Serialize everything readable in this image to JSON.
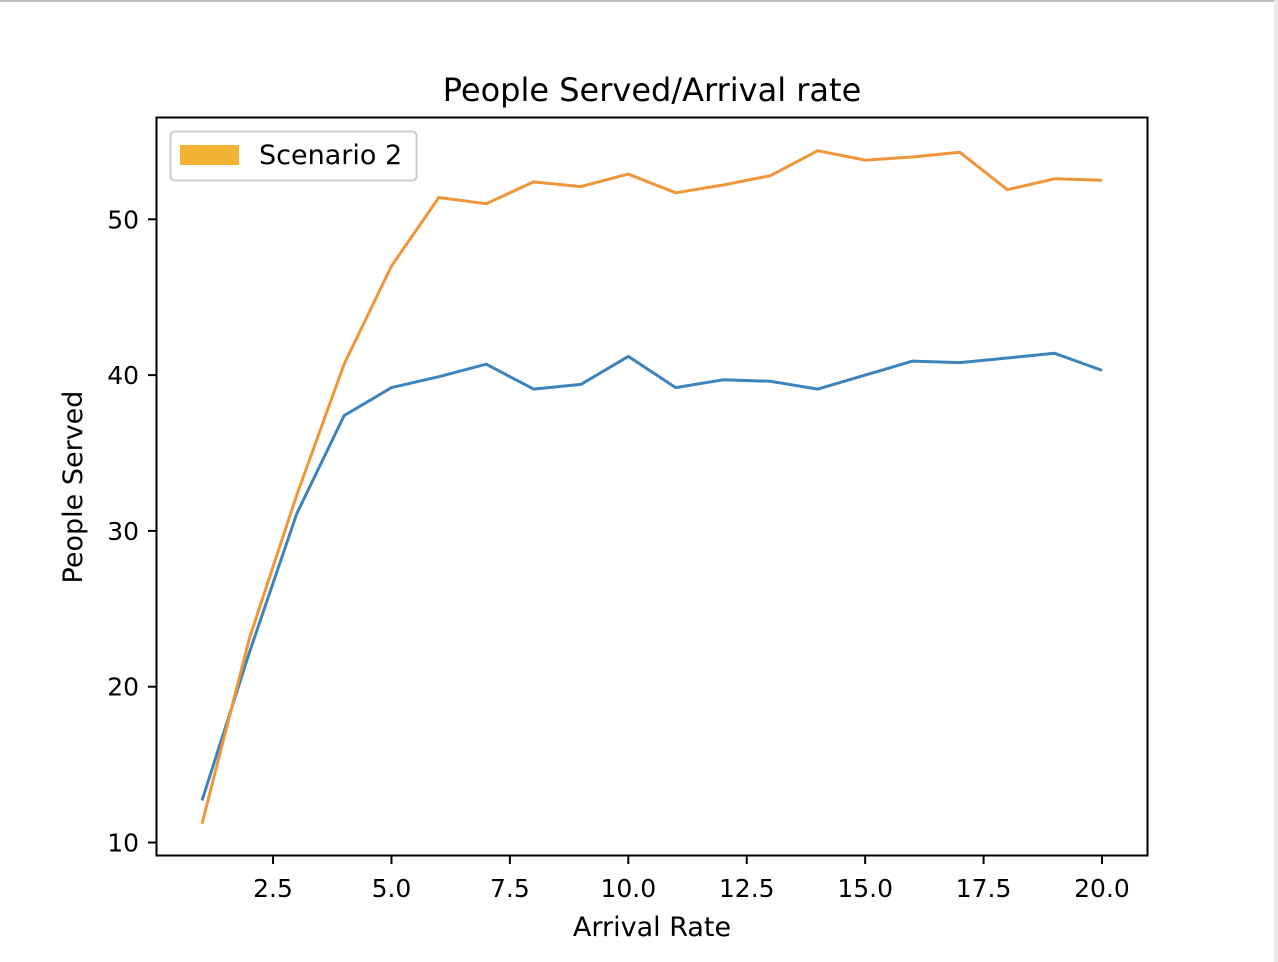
{
  "chart_data": {
    "type": "line",
    "title": "People Served/Arrival rate",
    "xlabel": "Arrival Rate",
    "ylabel": "People Served",
    "xlim": [
      0.05,
      20.95
    ],
    "ylim": [
      9.2,
      56.5
    ],
    "xticks": [
      2.5,
      5.0,
      7.5,
      10.0,
      12.5,
      15.0,
      17.5,
      20.0
    ],
    "xtick_labels": [
      "2.5",
      "5.0",
      "7.5",
      "10.0",
      "12.5",
      "15.0",
      "17.5",
      "20.0"
    ],
    "yticks": [
      10,
      20,
      30,
      40,
      50
    ],
    "ytick_labels": [
      "10",
      "20",
      "30",
      "40",
      "50"
    ],
    "grid": false,
    "legend_position": "top-left",
    "legend": [
      {
        "label": "Scenario 2",
        "color": "#f5b335"
      }
    ],
    "x": [
      1,
      2,
      3,
      4,
      5,
      6,
      7,
      8,
      9,
      10,
      11,
      12,
      13,
      14,
      15,
      16,
      17,
      18,
      19,
      20
    ],
    "series": [
      {
        "color": "#3d84bd",
        "values": [
          12.7,
          22.2,
          31.1,
          37.4,
          39.2,
          39.9,
          40.7,
          39.1,
          39.4,
          41.2,
          39.2,
          39.7,
          39.6,
          39.1,
          40.0,
          40.9,
          40.8,
          41.1,
          41.4,
          40.3
        ]
      },
      {
        "color": "#f0963a",
        "values": [
          11.2,
          23.1,
          32.3,
          40.7,
          47.0,
          51.4,
          51.0,
          52.4,
          52.1,
          52.9,
          51.7,
          52.2,
          52.8,
          54.4,
          53.8,
          54.0,
          54.3,
          51.9,
          52.6,
          52.5
        ]
      }
    ]
  }
}
